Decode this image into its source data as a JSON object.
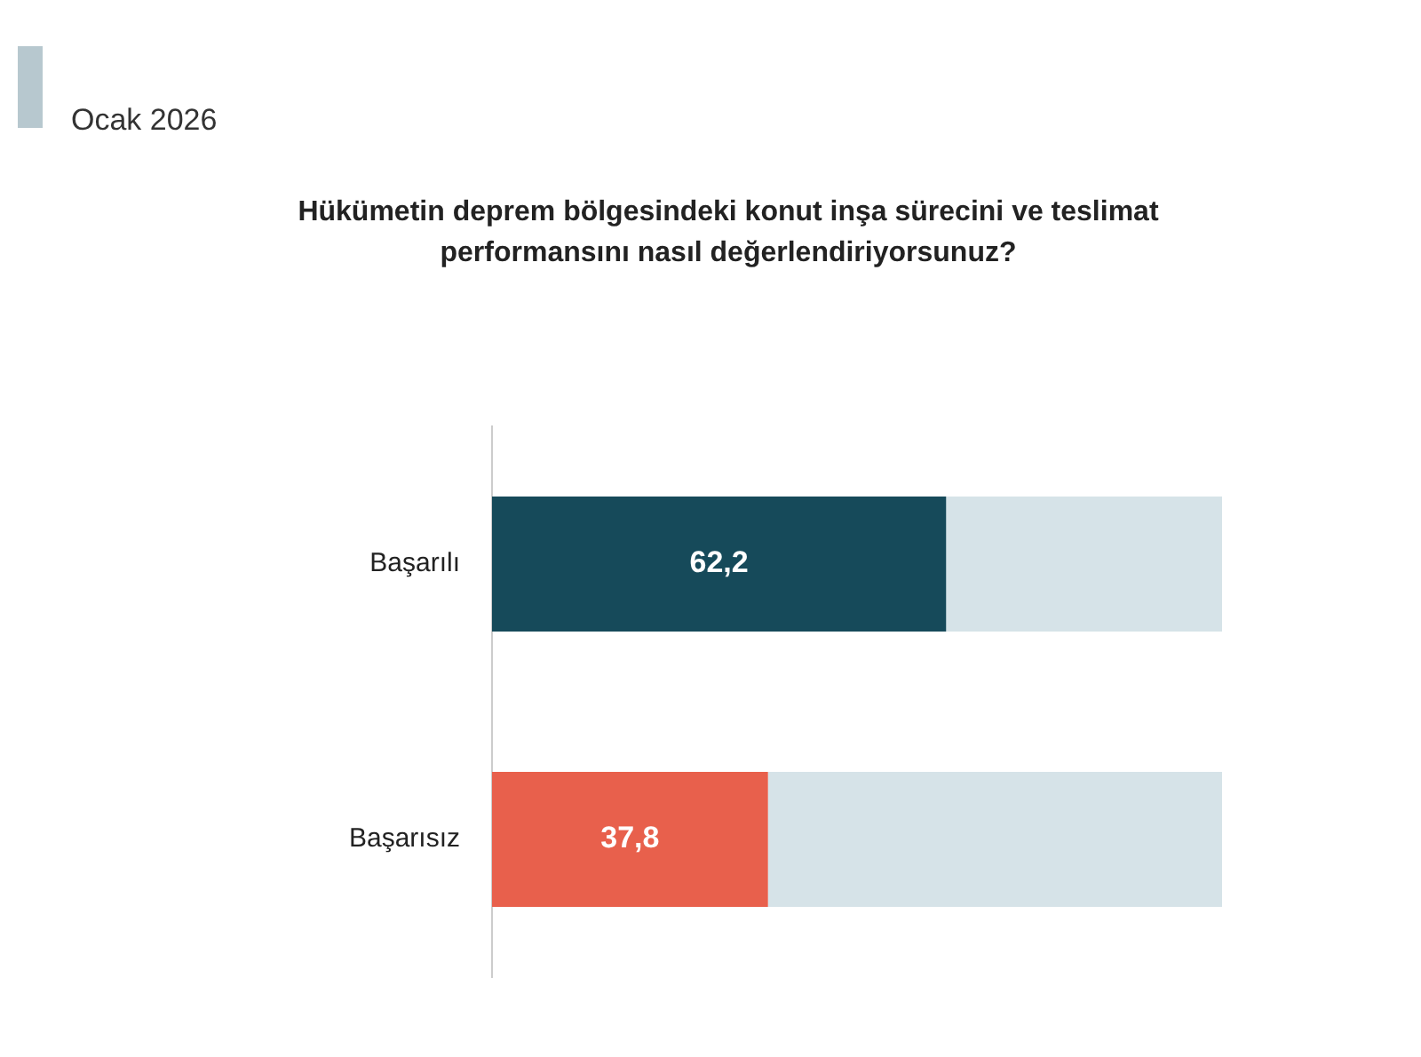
{
  "chart_data": {
    "type": "bar",
    "orientation": "horizontal",
    "stacked": true,
    "title": "Hükümetin deprem bölgesindeki konut inşa sürecini ve teslimat performansını nasıl değerlendiriyorsunuz?",
    "subtitle": "Ocak 2026",
    "categories": [
      "Başarılı",
      "Başarısız"
    ],
    "series": [
      {
        "colors": [
          "#164a5a",
          "#e8604c"
        ],
        "values": [
          62.2,
          37.8
        ],
        "value_labels": [
          "62,2",
          "37,8"
        ]
      },
      {
        "color": "#d6e3e8",
        "values": [
          37.8,
          62.2
        ]
      }
    ],
    "xlim": [
      0,
      100
    ],
    "tick_labels": "y",
    "legend": false
  }
}
